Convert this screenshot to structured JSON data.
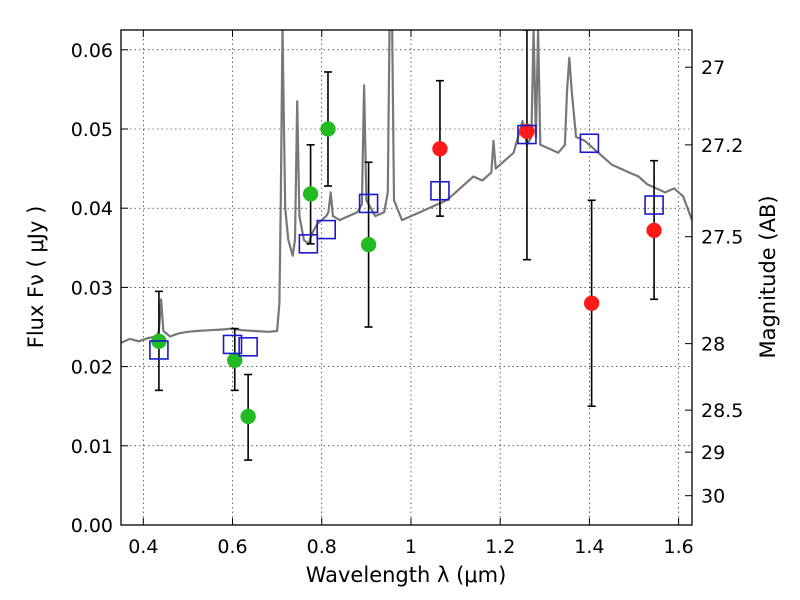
{
  "chart_data": {
    "type": "scatter",
    "title": "",
    "xlabel": "Wavelength  λ (μm)",
    "ylabel": "Flux  Fν  ( μJy )",
    "ylabel_right": "Magnitude (AB)",
    "xlim": [
      0.35,
      1.63
    ],
    "ylim": [
      0.0,
      0.0625
    ],
    "grid": true,
    "grid_style": "dotted",
    "x_ticks": [
      0.4,
      0.6,
      0.8,
      1.0,
      1.2,
      1.4,
      1.6
    ],
    "x_tick_labels": [
      "0.4",
      "0.6",
      "0.8",
      "1",
      "1.2",
      "1.4",
      "1.6"
    ],
    "y_ticks": [
      0.0,
      0.01,
      0.02,
      0.03,
      0.04,
      0.05,
      0.06
    ],
    "y_tick_labels": [
      "0.00",
      "0.01",
      "0.02",
      "0.03",
      "0.04",
      "0.05",
      "0.06"
    ],
    "right_ticks": [
      {
        "label": "27",
        "flux": 0.0578
      },
      {
        "label": "27.2",
        "flux": 0.048
      },
      {
        "label": "27.5",
        "flux": 0.0364
      },
      {
        "label": "28",
        "flux": 0.0229
      },
      {
        "label": "28.5",
        "flux": 0.0145
      },
      {
        "label": "29",
        "flux": 0.0092
      },
      {
        "label": "30",
        "flux": 0.0037
      }
    ],
    "model_spectrum": {
      "color": "#777777",
      "points": [
        [
          0.35,
          0.023
        ],
        [
          0.37,
          0.0235
        ],
        [
          0.39,
          0.0232
        ],
        [
          0.41,
          0.0236
        ],
        [
          0.43,
          0.0238
        ],
        [
          0.435,
          0.0245
        ],
        [
          0.44,
          0.0285
        ],
        [
          0.445,
          0.0245
        ],
        [
          0.46,
          0.0238
        ],
        [
          0.48,
          0.0242
        ],
        [
          0.5,
          0.0244
        ],
        [
          0.52,
          0.0245
        ],
        [
          0.55,
          0.0246
        ],
        [
          0.58,
          0.0247
        ],
        [
          0.6,
          0.0248
        ],
        [
          0.62,
          0.0246
        ],
        [
          0.65,
          0.0245
        ],
        [
          0.68,
          0.0244
        ],
        [
          0.7,
          0.0245
        ],
        [
          0.705,
          0.028
        ],
        [
          0.708,
          0.04
        ],
        [
          0.712,
          0.0625
        ],
        [
          0.718,
          0.04
        ],
        [
          0.725,
          0.036
        ],
        [
          0.735,
          0.034
        ],
        [
          0.74,
          0.036
        ],
        [
          0.745,
          0.0535
        ],
        [
          0.75,
          0.039
        ],
        [
          0.76,
          0.036
        ],
        [
          0.77,
          0.0355
        ],
        [
          0.78,
          0.037
        ],
        [
          0.79,
          0.038
        ],
        [
          0.8,
          0.0385
        ],
        [
          0.81,
          0.039
        ],
        [
          0.815,
          0.0395
        ],
        [
          0.82,
          0.042
        ],
        [
          0.825,
          0.039
        ],
        [
          0.84,
          0.0385
        ],
        [
          0.86,
          0.039
        ],
        [
          0.88,
          0.0395
        ],
        [
          0.89,
          0.0405
        ],
        [
          0.895,
          0.0555
        ],
        [
          0.9,
          0.041
        ],
        [
          0.92,
          0.039
        ],
        [
          0.94,
          0.0395
        ],
        [
          0.948,
          0.042
        ],
        [
          0.952,
          0.0625
        ],
        [
          0.958,
          0.0625
        ],
        [
          0.962,
          0.041
        ],
        [
          0.98,
          0.0385
        ],
        [
          1.0,
          0.039
        ],
        [
          1.02,
          0.0395
        ],
        [
          1.04,
          0.04
        ],
        [
          1.06,
          0.0405
        ],
        [
          1.08,
          0.041
        ],
        [
          1.1,
          0.042
        ],
        [
          1.12,
          0.043
        ],
        [
          1.14,
          0.044
        ],
        [
          1.16,
          0.0435
        ],
        [
          1.18,
          0.0445
        ],
        [
          1.185,
          0.0485
        ],
        [
          1.19,
          0.045
        ],
        [
          1.21,
          0.046
        ],
        [
          1.23,
          0.047
        ],
        [
          1.245,
          0.05
        ],
        [
          1.25,
          0.051
        ],
        [
          1.26,
          0.048
        ],
        [
          1.27,
          0.049
        ],
        [
          1.275,
          0.0625
        ],
        [
          1.28,
          0.049
        ],
        [
          1.285,
          0.0625
        ],
        [
          1.29,
          0.048
        ],
        [
          1.31,
          0.0475
        ],
        [
          1.33,
          0.047
        ],
        [
          1.345,
          0.048
        ],
        [
          1.35,
          0.055
        ],
        [
          1.355,
          0.059
        ],
        [
          1.36,
          0.055
        ],
        [
          1.37,
          0.049
        ],
        [
          1.39,
          0.0485
        ],
        [
          1.41,
          0.0475
        ],
        [
          1.43,
          0.0465
        ],
        [
          1.45,
          0.0455
        ],
        [
          1.47,
          0.045
        ],
        [
          1.49,
          0.0445
        ],
        [
          1.51,
          0.044
        ],
        [
          1.53,
          0.043
        ],
        [
          1.55,
          0.0425
        ],
        [
          1.57,
          0.042
        ],
        [
          1.59,
          0.0425
        ],
        [
          1.61,
          0.0415
        ],
        [
          1.63,
          0.0385
        ]
      ]
    },
    "series": [
      {
        "marker": "circle",
        "color": "#22bb22",
        "points": [
          {
            "x": 0.435,
            "y": 0.0232,
            "err_low": 0.017,
            "err_high": 0.0295
          },
          {
            "x": 0.605,
            "y": 0.0208,
            "err_low": 0.017,
            "err_high": 0.0248
          },
          {
            "x": 0.635,
            "y": 0.0137,
            "err_low": 0.0082,
            "err_high": 0.019
          },
          {
            "x": 0.775,
            "y": 0.0418,
            "err_low": 0.0355,
            "err_high": 0.048
          },
          {
            "x": 0.814,
            "y": 0.05,
            "err_low": 0.0428,
            "err_high": 0.0572
          },
          {
            "x": 0.905,
            "y": 0.0354,
            "err_low": 0.025,
            "err_high": 0.0458
          }
        ]
      },
      {
        "marker": "circle",
        "color": "#ff1a1a",
        "points": [
          {
            "x": 1.065,
            "y": 0.0475,
            "err_low": 0.039,
            "err_high": 0.0561
          },
          {
            "x": 1.26,
            "y": 0.0497,
            "err_low": 0.0335,
            "err_high": 0.0625
          },
          {
            "x": 1.405,
            "y": 0.028,
            "err_low": 0.015,
            "err_high": 0.041
          },
          {
            "x": 1.545,
            "y": 0.0372,
            "err_low": 0.0285,
            "err_high": 0.046
          }
        ]
      },
      {
        "marker": "square",
        "color": "#1a1acc",
        "points": [
          {
            "x": 0.435,
            "y": 0.0221
          },
          {
            "x": 0.6,
            "y": 0.0228
          },
          {
            "x": 0.635,
            "y": 0.0225
          },
          {
            "x": 0.77,
            "y": 0.0355
          },
          {
            "x": 0.81,
            "y": 0.0373
          },
          {
            "x": 0.905,
            "y": 0.0406
          },
          {
            "x": 1.065,
            "y": 0.0422
          },
          {
            "x": 1.26,
            "y": 0.0493
          },
          {
            "x": 1.4,
            "y": 0.0482
          },
          {
            "x": 1.545,
            "y": 0.0404
          }
        ]
      }
    ]
  }
}
